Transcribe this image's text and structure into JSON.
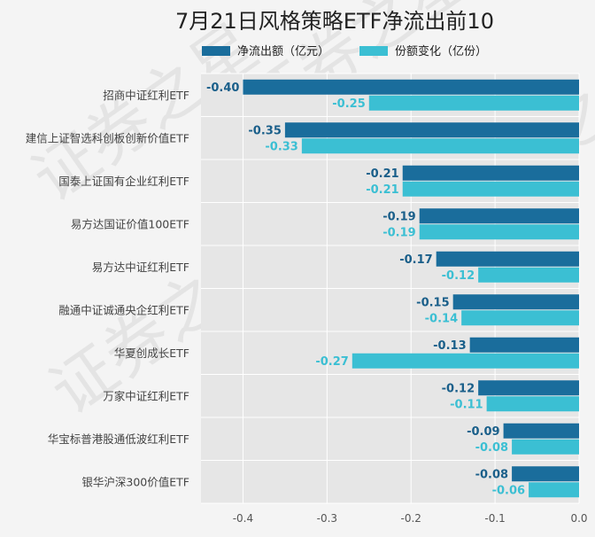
{
  "chart_data": {
    "type": "bar",
    "orientation": "horizontal",
    "title": "7月21日风格策略ETF净流出前10",
    "categories": [
      "招商中证红利ETF",
      "建信上证智选科创板创新价值ETF",
      "国泰上证国有企业红利ETF",
      "易方达国证价值100ETF",
      "易方达中证红利ETF",
      "融通中证诚通央企红利ETF",
      "华夏创成长ETF",
      "万家中证红利ETF",
      "华宝标普港股通低波红利ETF",
      "银华沪深300价值ETF"
    ],
    "series": [
      {
        "name": "净流出额（亿元）",
        "color": "#1a6d9c",
        "label_color": "#1a5f8a",
        "values": [
          -0.4,
          -0.35,
          -0.21,
          -0.19,
          -0.17,
          -0.15,
          -0.13,
          -0.12,
          -0.09,
          -0.08
        ],
        "labels": [
          "-0.40",
          "-0.35",
          "-0.21",
          "-0.19",
          "-0.17",
          "-0.15",
          "-0.13",
          "-0.12",
          "-0.09",
          "-0.08"
        ]
      },
      {
        "name": "份额变化（亿份）",
        "color": "#3bbfd3",
        "label_color": "#3bbfd3",
        "values": [
          -0.25,
          -0.33,
          -0.21,
          -0.19,
          -0.12,
          -0.14,
          -0.27,
          -0.11,
          -0.08,
          -0.06
        ],
        "labels": [
          "-0.25",
          "-0.33",
          "-0.21",
          "-0.19",
          "-0.12",
          "-0.14",
          "-0.27",
          "-0.11",
          "-0.08",
          "-0.06"
        ]
      }
    ],
    "xlim": [
      -0.45,
      0.0
    ],
    "xticks": [
      -0.4,
      -0.3,
      -0.2,
      -0.1,
      0.0
    ],
    "xtick_labels": [
      "-0.4",
      "-0.3",
      "-0.2",
      "-0.1",
      "0.0"
    ],
    "grid": true,
    "legend": "top"
  },
  "watermark": "证券之星",
  "colors": {
    "background": "#f4f4f4",
    "plot_background": "#e6e6e6",
    "grid": "#ffffff"
  }
}
